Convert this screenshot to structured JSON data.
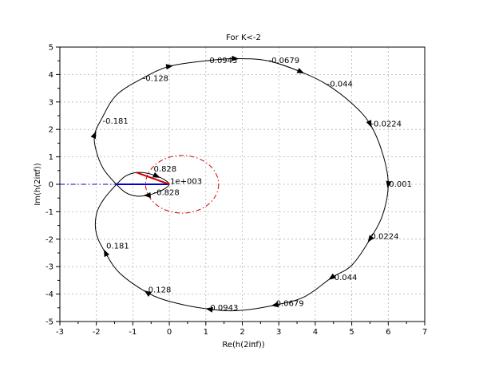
{
  "chart_data": {
    "type": "line",
    "title": "For K<-2",
    "xlabel": "Re(h(2iπf))",
    "ylabel": "Im(h(2iπf))",
    "xlim": [
      -3,
      7
    ],
    "ylim": [
      -5,
      5
    ],
    "x_ticks": [
      "-3",
      "-2",
      "-1",
      "0",
      "1",
      "2",
      "3",
      "4",
      "5",
      "6",
      "7"
    ],
    "y_ticks": [
      "-5",
      "-4",
      "-3",
      "-2",
      "-1",
      "0",
      "1",
      "2",
      "3",
      "4",
      "5"
    ],
    "grid": true,
    "series": [
      {
        "color": "#000000",
        "style": "solid",
        "points": [
          [
            -1.45,
            0.0
          ],
          [
            -1.2,
            0.3
          ],
          [
            -0.9,
            0.43
          ],
          [
            -0.6,
            0.4
          ],
          [
            -0.35,
            0.3
          ],
          [
            -0.15,
            0.18
          ],
          [
            0.0,
            0.0
          ],
          [
            -0.15,
            -0.18
          ],
          [
            -0.35,
            -0.3
          ],
          [
            -0.6,
            -0.4
          ],
          [
            -0.9,
            -0.43
          ],
          [
            -1.2,
            -0.3
          ],
          [
            -1.45,
            0.0
          ],
          [
            -1.8,
            0.55
          ],
          [
            -2.0,
            1.2
          ],
          [
            -2.05,
            1.8
          ],
          [
            -1.85,
            2.4
          ],
          [
            -1.45,
            3.25
          ],
          [
            -0.75,
            3.85
          ],
          [
            0.0,
            4.3
          ],
          [
            1.0,
            4.5
          ],
          [
            1.8,
            4.58
          ],
          [
            2.7,
            4.5
          ],
          [
            3.6,
            4.1
          ],
          [
            4.3,
            3.65
          ],
          [
            5.0,
            2.95
          ],
          [
            5.5,
            2.2
          ],
          [
            5.85,
            1.1
          ],
          [
            6.0,
            0.0
          ],
          [
            5.85,
            -1.1
          ],
          [
            5.5,
            -2.0
          ],
          [
            5.0,
            -2.95
          ],
          [
            4.45,
            -3.4
          ],
          [
            3.7,
            -4.1
          ],
          [
            2.9,
            -4.4
          ],
          [
            1.9,
            -4.6
          ],
          [
            1.1,
            -4.55
          ],
          [
            0.1,
            -4.3
          ],
          [
            -0.6,
            -3.95
          ],
          [
            -1.35,
            -3.25
          ],
          [
            -1.75,
            -2.5
          ],
          [
            -2.0,
            -1.8
          ],
          [
            -2.0,
            -1.1
          ],
          [
            -1.8,
            -0.55
          ],
          [
            -1.45,
            0.0
          ]
        ]
      },
      {
        "color": "#0000cc",
        "style": "dash-dot",
        "points": [
          [
            -3.0,
            0.0
          ],
          [
            -1.45,
            0.0
          ]
        ]
      },
      {
        "color": "#0000cc",
        "style": "solid",
        "points": [
          [
            -1.45,
            0.0
          ],
          [
            0.0,
            0.0
          ]
        ]
      },
      {
        "color": "#cc0000",
        "style": "solid",
        "points": [
          [
            -0.9,
            0.43
          ],
          [
            0.0,
            0.0
          ]
        ]
      },
      {
        "color": "#cc0000",
        "style": "dash-dot-circle",
        "center": [
          0.35,
          0.0
        ],
        "radius_x": 1.0,
        "radius_y": 1.05
      }
    ],
    "annotations": [
      {
        "text": "-0.0943",
        "x": 1.0,
        "y": 4.5
      },
      {
        "text": "-0.0679",
        "x": 2.7,
        "y": 4.5
      },
      {
        "text": "-0.128",
        "x": -0.75,
        "y": 3.85
      },
      {
        "text": "-0.044",
        "x": 4.3,
        "y": 3.65
      },
      {
        "text": "-0.181",
        "x": -1.85,
        "y": 2.3
      },
      {
        "text": "-0.0224",
        "x": 5.5,
        "y": 2.2
      },
      {
        "text": "0.828",
        "x": -0.45,
        "y": 0.55
      },
      {
        "text": "1e+003",
        "x": 0.0,
        "y": 0.1
      },
      {
        "text": "-0.828",
        "x": -0.45,
        "y": -0.3
      },
      {
        "text": "0.001",
        "x": 6.0,
        "y": 0.0
      },
      {
        "text": "0.0224",
        "x": 5.5,
        "y": -1.9
      },
      {
        "text": "0.181",
        "x": -1.75,
        "y": -2.25
      },
      {
        "text": "0.044",
        "x": 4.5,
        "y": -3.4
      },
      {
        "text": "0.128",
        "x": -0.6,
        "y": -3.85
      },
      {
        "text": "0.0679",
        "x": 2.9,
        "y": -4.35
      },
      {
        "text": "0.0943",
        "x": 1.1,
        "y": -4.5
      }
    ]
  }
}
